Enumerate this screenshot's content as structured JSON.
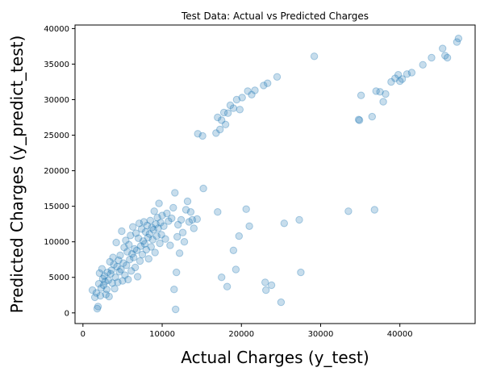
{
  "chart_data": {
    "type": "scatter",
    "title": "Test Data: Actual vs Predicted Charges",
    "xlabel": "Actual Charges (y_test)",
    "ylabel": "Predicted Charges (y_predict_test)",
    "xlim": [
      -1000,
      49500
    ],
    "ylim": [
      -1500,
      40500
    ],
    "xticks": [
      0,
      10000,
      20000,
      30000,
      40000
    ],
    "yticks": [
      0,
      5000,
      10000,
      15000,
      20000,
      25000,
      30000,
      35000,
      40000
    ],
    "grid": false,
    "point_color": "#1f77b4",
    "point_alpha": 0.25,
    "series": [
      {
        "points": [
          [
            1200,
            3200
          ],
          [
            1500,
            2200
          ],
          [
            1700,
            2800
          ],
          [
            1800,
            600
          ],
          [
            1900,
            900
          ],
          [
            2000,
            4100
          ],
          [
            2100,
            5600
          ],
          [
            2200,
            2400
          ],
          [
            2300,
            3500
          ],
          [
            2400,
            6200
          ],
          [
            2500,
            4800
          ],
          [
            2600,
            3900
          ],
          [
            2700,
            5200
          ],
          [
            2800,
            4400
          ],
          [
            2900,
            2600
          ],
          [
            3000,
            3300
          ],
          [
            3100,
            5700
          ],
          [
            3200,
            4600
          ],
          [
            3300,
            2300
          ],
          [
            3400,
            7200
          ],
          [
            3500,
            5500
          ],
          [
            3600,
            6000
          ],
          [
            3700,
            4200
          ],
          [
            3800,
            7800
          ],
          [
            3900,
            6800
          ],
          [
            4000,
            3400
          ],
          [
            4100,
            5000
          ],
          [
            4200,
            9900
          ],
          [
            4300,
            6500
          ],
          [
            4400,
            4300
          ],
          [
            4500,
            7400
          ],
          [
            4600,
            5800
          ],
          [
            4700,
            8100
          ],
          [
            4800,
            6100
          ],
          [
            4900,
            11500
          ],
          [
            5000,
            4500
          ],
          [
            5100,
            7000
          ],
          [
            5200,
            9200
          ],
          [
            5300,
            5300
          ],
          [
            5400,
            10200
          ],
          [
            5500,
            6700
          ],
          [
            5600,
            8600
          ],
          [
            5700,
            4700
          ],
          [
            5800,
            9600
          ],
          [
            5900,
            7500
          ],
          [
            6000,
            10900
          ],
          [
            6100,
            5900
          ],
          [
            6200,
            8300
          ],
          [
            6300,
            12100
          ],
          [
            6400,
            7800
          ],
          [
            6500,
            9000
          ],
          [
            6600,
            6400
          ],
          [
            6700,
            11200
          ],
          [
            6800,
            8800
          ],
          [
            6900,
            5100
          ],
          [
            7000,
            10500
          ],
          [
            7100,
            12600
          ],
          [
            7200,
            7300
          ],
          [
            7300,
            9400
          ],
          [
            7400,
            11800
          ],
          [
            7500,
            8200
          ],
          [
            7600,
            10100
          ],
          [
            7700,
            12800
          ],
          [
            7800,
            9700
          ],
          [
            7900,
            11400
          ],
          [
            8000,
            8900
          ],
          [
            8100,
            12300
          ],
          [
            8200,
            10600
          ],
          [
            8300,
            7600
          ],
          [
            8400,
            11100
          ],
          [
            8500,
            13000
          ],
          [
            8600,
            9300
          ],
          [
            8700,
            12000
          ],
          [
            8800,
            10300
          ],
          [
            8900,
            11700
          ],
          [
            9000,
            14300
          ],
          [
            9100,
            8500
          ],
          [
            9200,
            12500
          ],
          [
            9300,
            10800
          ],
          [
            9400,
            13400
          ],
          [
            9500,
            11900
          ],
          [
            9600,
            15400
          ],
          [
            9700,
            9800
          ],
          [
            9800,
            12700
          ],
          [
            9900,
            11000
          ],
          [
            10000,
            13700
          ],
          [
            10200,
            12200
          ],
          [
            10400,
            10400
          ],
          [
            10600,
            14000
          ],
          [
            10800,
            12900
          ],
          [
            11000,
            9500
          ],
          [
            11200,
            13300
          ],
          [
            11400,
            14800
          ],
          [
            11500,
            3300
          ],
          [
            11600,
            16900
          ],
          [
            11700,
            500
          ],
          [
            11800,
            5700
          ],
          [
            11900,
            10700
          ],
          [
            12000,
            12400
          ],
          [
            12200,
            8400
          ],
          [
            12400,
            13100
          ],
          [
            12600,
            11300
          ],
          [
            12800,
            10000
          ],
          [
            13000,
            14500
          ],
          [
            13200,
            15700
          ],
          [
            13400,
            12800
          ],
          [
            13600,
            14200
          ],
          [
            13800,
            13100
          ],
          [
            14000,
            11900
          ],
          [
            14400,
            13200
          ],
          [
            15200,
            17500
          ],
          [
            17000,
            14200
          ],
          [
            14500,
            25200
          ],
          [
            15100,
            24900
          ],
          [
            16800,
            25300
          ],
          [
            17000,
            27500
          ],
          [
            17300,
            25800
          ],
          [
            17500,
            27100
          ],
          [
            17800,
            28200
          ],
          [
            18000,
            26500
          ],
          [
            18300,
            28100
          ],
          [
            18600,
            29200
          ],
          [
            19000,
            28800
          ],
          [
            19400,
            30000
          ],
          [
            19800,
            28600
          ],
          [
            20100,
            30300
          ],
          [
            20800,
            31200
          ],
          [
            21300,
            30700
          ],
          [
            21700,
            31300
          ],
          [
            22800,
            32000
          ],
          [
            23300,
            32300
          ],
          [
            24500,
            33200
          ],
          [
            29200,
            36100
          ],
          [
            17500,
            5000
          ],
          [
            18200,
            3700
          ],
          [
            19000,
            8800
          ],
          [
            19300,
            6100
          ],
          [
            19700,
            10800
          ],
          [
            20600,
            14600
          ],
          [
            21000,
            12200
          ],
          [
            23000,
            4300
          ],
          [
            23100,
            3200
          ],
          [
            23800,
            3900
          ],
          [
            25000,
            1500
          ],
          [
            25400,
            12600
          ],
          [
            27300,
            13100
          ],
          [
            27500,
            5700
          ],
          [
            33500,
            14300
          ],
          [
            36800,
            14500
          ],
          [
            34800,
            27200
          ],
          [
            34900,
            27100
          ],
          [
            35100,
            30600
          ],
          [
            36500,
            27600
          ],
          [
            37000,
            31200
          ],
          [
            37500,
            31100
          ],
          [
            37900,
            29700
          ],
          [
            38200,
            30800
          ],
          [
            38900,
            32500
          ],
          [
            39400,
            33000
          ],
          [
            39800,
            33500
          ],
          [
            40000,
            32600
          ],
          [
            40300,
            32900
          ],
          [
            40900,
            33600
          ],
          [
            41500,
            33800
          ],
          [
            42900,
            34900
          ],
          [
            44000,
            35900
          ],
          [
            45400,
            37200
          ],
          [
            45700,
            36200
          ],
          [
            46000,
            35900
          ],
          [
            47200,
            38100
          ],
          [
            47400,
            38600
          ]
        ]
      }
    ]
  }
}
